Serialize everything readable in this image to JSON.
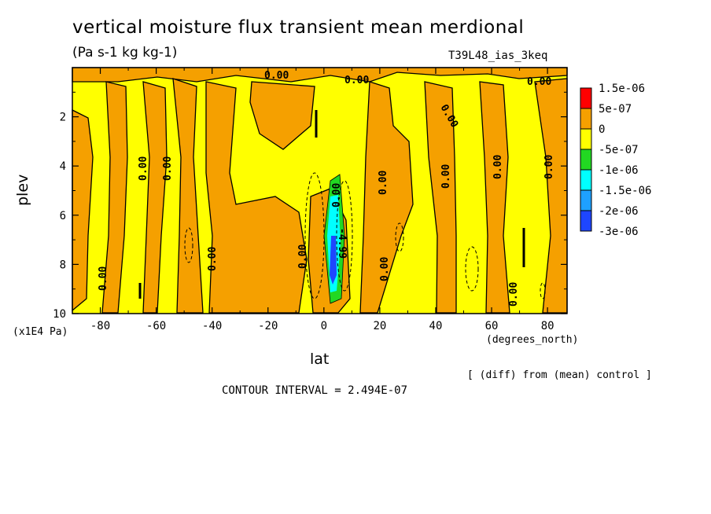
{
  "chart_data": {
    "type": "heatmap",
    "title": "vertical moisture flux transient mean merdional",
    "subtitle": "(Pa s-1 kg kg-1)",
    "run_label": "T39L48_ias_3keq",
    "xlabel": "lat",
    "x_unit": "(degrees_north)",
    "ylabel": "plev",
    "y_unit": "(x1E4 Pa)",
    "xlim": [
      -90,
      87
    ],
    "ylim": [
      10,
      0
    ],
    "x_ticks": [
      "-80",
      "-60",
      "-40",
      "-20",
      "0",
      "20",
      "40",
      "60",
      "80"
    ],
    "y_ticks": [
      "2",
      "4",
      "6",
      "8",
      "10"
    ],
    "colorbar": {
      "labels": [
        "1.5e-06",
        "5e-07",
        "0",
        "-5e-07",
        "-1e-06",
        "-1.5e-06",
        "-2e-06",
        "-3e-06"
      ],
      "colors": [
        "#ff0000",
        "#f5a000",
        "#ffff00",
        "#22d822",
        "#00ffff",
        "#1ea0ff",
        "#1e46ff"
      ]
    },
    "contour_labels": [
      "0.00",
      "0.00",
      "0.00",
      "0.00",
      "0.00",
      "0.00",
      "0.00",
      "0.00",
      "0.00",
      "0.00",
      "0.00",
      "0.00",
      "0.00",
      "0.00",
      "0.00",
      "0.00",
      "-4.99"
    ],
    "notes": {
      "diff": "[ (diff) from (mean) control ]",
      "contour_interval": "CONTOUR INTERVAL = 2.494E-07"
    }
  }
}
